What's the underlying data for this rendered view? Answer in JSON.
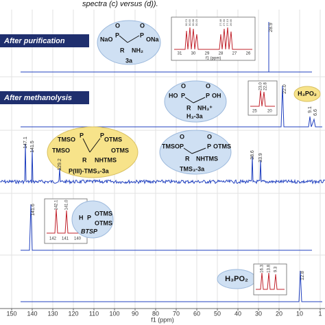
{
  "caption": "spectra (c) versus (d)).",
  "panels": [
    {
      "label": "After purification",
      "compound": "3a",
      "structure": [
        "O",
        "O",
        "NaO",
        "P",
        "P",
        "ONa",
        "R",
        "NH₂"
      ],
      "peak": "28.9",
      "inset_peaks": [
        "30.73",
        "30.55",
        "30.38",
        "30.20",
        "27.48",
        "27.30",
        "27.13",
        "26.95"
      ],
      "inset_axis": [
        "31",
        "30",
        "29",
        "28",
        "27",
        "26"
      ],
      "inset_unit": "f1 (ppm)"
    },
    {
      "label": "After methanolysis",
      "compound": "H₃-3a",
      "structure": [
        "O",
        "O",
        "HO",
        "P",
        "P",
        "OH",
        "R",
        "NH₃⁺"
      ],
      "peak": "22.0",
      "inset_peaks": [
        "23.0",
        "22.8"
      ],
      "inset_axis": [
        "25",
        "20"
      ],
      "side_compound": "H₃PO₂",
      "side_peaks": [
        "9.1",
        "6.6"
      ]
    },
    {
      "compounds": [
        {
          "name": "P(III)-TMS₃-3a",
          "structure": [
            "TMSO",
            "P",
            "P",
            "OTMS",
            "TMSO",
            "OTMS",
            "R",
            "NHTMS"
          ]
        },
        {
          "name": "TMS₃-3a",
          "structure": [
            "O",
            "O",
            "TMSO",
            "P",
            "P",
            "OTMS",
            "R",
            "NHTMS"
          ]
        }
      ],
      "peaks": [
        "147.1",
        "141.5",
        "129.2",
        "38.6",
        "33.9"
      ]
    },
    {
      "compound": "BTSP",
      "structure": [
        "H",
        "P",
        "OTMS",
        "OTMS"
      ],
      "peak": "141.6",
      "inset_peaks": [
        "142.1",
        "141.0"
      ],
      "inset_axis": [
        "142",
        "141",
        "140"
      ]
    },
    {
      "compound": "H₃PO₂",
      "peak": "12.8",
      "inset_peaks": [
        "16.3",
        "13.8",
        "9.3"
      ]
    }
  ],
  "axis": {
    "ticks": [
      "150",
      "140",
      "130",
      "120",
      "110",
      "100",
      "90",
      "80",
      "70",
      "60",
      "50",
      "40",
      "30",
      "20",
      "10",
      "1"
    ],
    "label": "f1 (ppm)"
  }
}
